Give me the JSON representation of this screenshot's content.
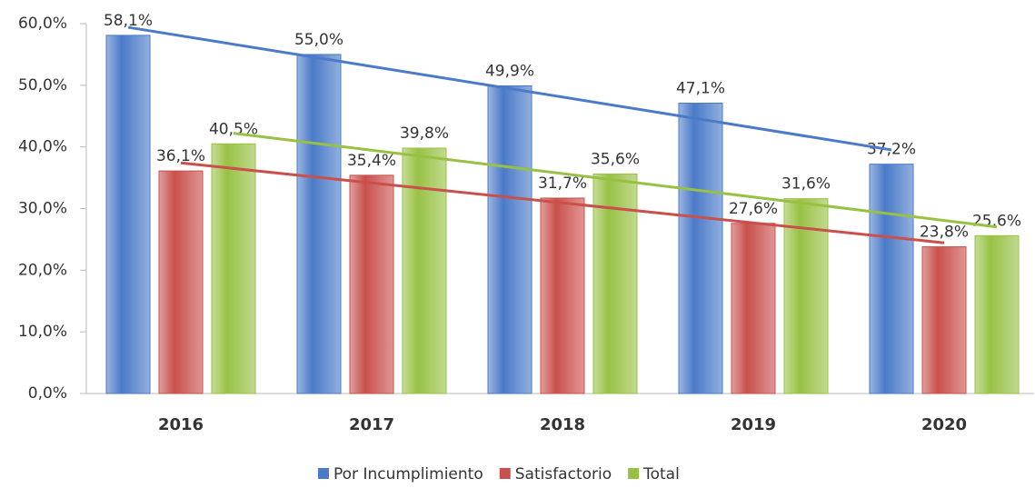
{
  "chart_data": {
    "type": "bar",
    "categories": [
      "2016",
      "2017",
      "2018",
      "2019",
      "2020"
    ],
    "series": [
      {
        "name": "Por Incumplimiento",
        "color": "#4a7ac8",
        "values": [
          58.1,
          55.0,
          49.9,
          47.1,
          37.2
        ],
        "value_labels": [
          "58,1%",
          "55,0%",
          "49,9%",
          "47,1%",
          "37,2%"
        ]
      },
      {
        "name": "Satisfactorio",
        "color": "#c9504c",
        "values": [
          36.1,
          35.4,
          31.7,
          27.6,
          23.8
        ],
        "value_labels": [
          "36,1%",
          "35,4%",
          "31,7%",
          "27,6%",
          "23,8%"
        ]
      },
      {
        "name": "Total",
        "color": "#98c144",
        "values": [
          40.5,
          39.8,
          35.6,
          31.6,
          25.6
        ],
        "value_labels": [
          "40,5%",
          "39,8%",
          "35,6%",
          "31,6%",
          "25,6%"
        ]
      }
    ],
    "ylim": [
      0,
      60
    ],
    "yticks": [
      {
        "value": 0,
        "label": "0,0%"
      },
      {
        "value": 10,
        "label": "10,0%"
      },
      {
        "value": 20,
        "label": "20,0%"
      },
      {
        "value": 30,
        "label": "30,0%"
      },
      {
        "value": 40,
        "label": "40,0%"
      },
      {
        "value": 50,
        "label": "50,0%"
      },
      {
        "value": 60,
        "label": "60,0%"
      }
    ],
    "trendline": true,
    "legend": "bottom"
  }
}
